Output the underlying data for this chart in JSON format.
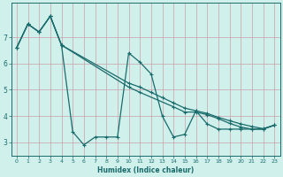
{
  "xlabel": "Humidex (Indice chaleur)",
  "bg_color": "#d0f0ec",
  "line_color": "#1a6b6b",
  "grid_color": "#c8a0a8",
  "xlim": [
    -0.5,
    23.5
  ],
  "ylim": [
    2.5,
    8.3
  ],
  "xticks": [
    0,
    1,
    2,
    3,
    4,
    5,
    6,
    7,
    8,
    9,
    10,
    11,
    12,
    13,
    14,
    15,
    16,
    17,
    18,
    19,
    20,
    21,
    22,
    23
  ],
  "yticks": [
    3,
    4,
    5,
    6,
    7
  ],
  "line1_x": [
    0,
    1,
    2,
    3,
    4,
    5,
    6,
    7,
    8,
    9,
    10,
    11,
    12,
    13,
    14,
    15,
    16,
    17,
    18,
    19,
    20,
    21,
    22,
    23
  ],
  "line1_y": [
    6.6,
    7.5,
    7.2,
    7.8,
    6.7,
    3.4,
    2.9,
    3.2,
    3.2,
    3.2,
    6.4,
    6.05,
    5.6,
    4.0,
    3.2,
    3.3,
    4.2,
    3.7,
    3.5,
    3.5,
    3.5,
    3.5,
    3.5,
    3.65
  ],
  "line2_x": [
    0,
    1,
    2,
    3,
    4,
    10,
    11,
    12,
    13,
    14,
    15,
    16,
    17,
    18,
    19,
    20,
    21,
    22,
    23
  ],
  "line2_y": [
    6.6,
    7.5,
    7.2,
    7.8,
    6.7,
    5.25,
    5.1,
    4.9,
    4.7,
    4.5,
    4.3,
    4.2,
    4.1,
    3.95,
    3.82,
    3.7,
    3.6,
    3.52,
    3.65
  ],
  "line3_x": [
    0,
    1,
    2,
    3,
    4,
    10,
    11,
    14,
    15,
    16,
    17,
    18,
    19,
    20,
    21,
    22,
    23
  ],
  "line3_y": [
    6.6,
    7.5,
    7.2,
    7.8,
    6.7,
    5.1,
    4.9,
    4.35,
    4.15,
    4.15,
    4.05,
    3.9,
    3.72,
    3.58,
    3.5,
    3.5,
    3.65
  ]
}
